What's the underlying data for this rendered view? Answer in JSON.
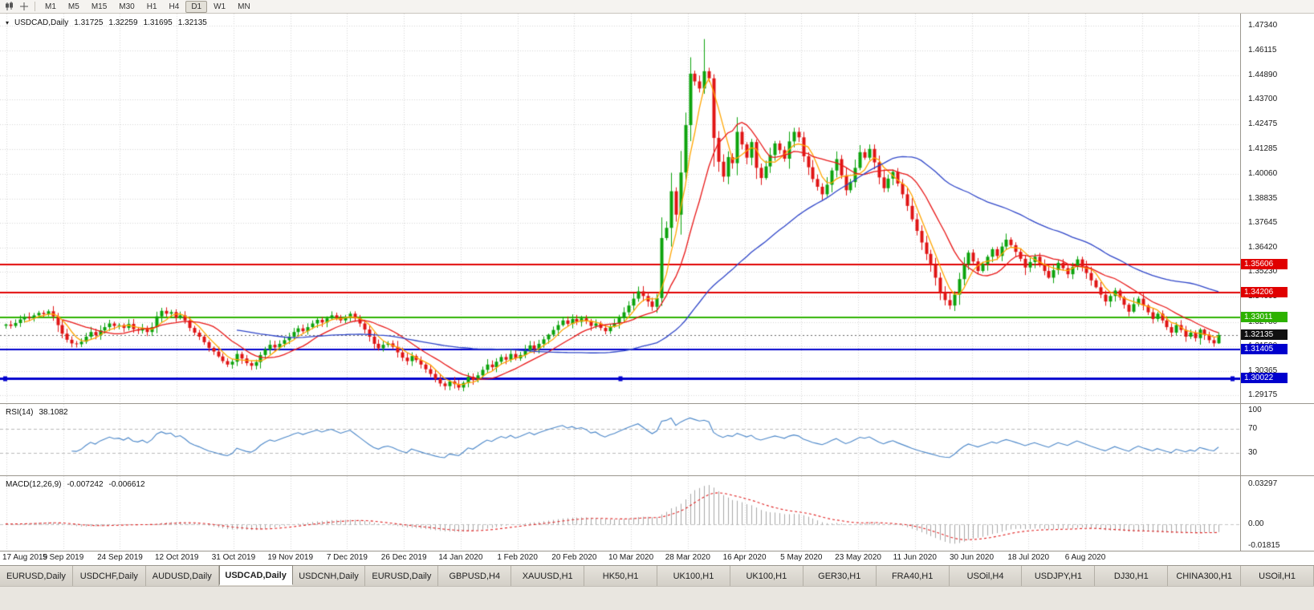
{
  "toolbar": {
    "timeframes": [
      "M1",
      "M5",
      "M15",
      "M30",
      "H1",
      "H4",
      "D1",
      "W1",
      "MN"
    ],
    "active": "D1"
  },
  "header": {
    "symbol": "USDCAD,Daily",
    "open": "1.31725",
    "high": "1.32259",
    "low": "1.31695",
    "close": "1.32135"
  },
  "chart_data": {
    "type": "candlestick",
    "symbol": "USDCAD",
    "timeframe": "Daily",
    "price_range": [
      1.29175,
      1.4734
    ],
    "y_ticks": [
      "1.47340",
      "1.46115",
      "1.44890",
      "1.43700",
      "1.42475",
      "1.41285",
      "1.40060",
      "1.38835",
      "1.37645",
      "1.36420",
      "1.35230",
      "1.34005",
      "1.32780",
      "1.31590",
      "1.30365",
      "1.29175"
    ],
    "x_labels": [
      "17 Aug 2019",
      "5 Sep 2019",
      "24 Sep 2019",
      "12 Oct 2019",
      "31 Oct 2019",
      "19 Nov 2019",
      "7 Dec 2019",
      "26 Dec 2019",
      "14 Jan 2020",
      "1 Feb 2020",
      "20 Feb 2020",
      "10 Mar 2020",
      "28 Mar 2020",
      "16 Apr 2020",
      "5 May 2020",
      "23 May 2020",
      "11 Jun 2020",
      "30 Jun 2020",
      "18 Jul 2020",
      "6 Aug 2020"
    ],
    "closes": [
      1.3265,
      1.3258,
      1.3272,
      1.329,
      1.3302,
      1.3295,
      1.331,
      1.3322,
      1.3316,
      1.333,
      1.3305,
      1.3262,
      1.322,
      1.319,
      1.3172,
      1.3168,
      1.318,
      1.3205,
      1.3228,
      1.3212,
      1.3236,
      1.3252,
      1.327,
      1.3258,
      1.3262,
      1.3248,
      1.3268,
      1.3242,
      1.3235,
      1.3248,
      1.3228,
      1.3252,
      1.3305,
      1.3332,
      1.3318,
      1.3326,
      1.3298,
      1.331,
      1.3285,
      1.3248,
      1.3225,
      1.3205,
      1.3178,
      1.315,
      1.3132,
      1.3108,
      1.3085,
      1.3068,
      1.3082,
      1.312,
      1.3098,
      1.3075,
      1.3062,
      1.308,
      1.3115,
      1.3142,
      1.3165,
      1.3152,
      1.317,
      1.3188,
      1.3205,
      1.3228,
      1.3246,
      1.3232,
      1.3252,
      1.327,
      1.3288,
      1.3275,
      1.3295,
      1.331,
      1.3298,
      1.3285,
      1.3302,
      1.3318,
      1.3295,
      1.327,
      1.324,
      1.3205,
      1.317,
      1.3148,
      1.3165,
      1.3172,
      1.3155,
      1.3128,
      1.3102,
      1.3085,
      1.311,
      1.309,
      1.3068,
      1.3045,
      1.3022,
      1.2998,
      1.2975,
      1.2962,
      1.2985,
      1.2972,
      1.2955,
      1.2978,
      1.3008,
      1.2992,
      1.3015,
      1.3042,
      1.3068,
      1.3055,
      1.3082,
      1.3105,
      1.3092,
      1.312,
      1.3098,
      1.3115,
      1.3138,
      1.3162,
      1.3145,
      1.317,
      1.3192,
      1.3215,
      1.3238,
      1.3262,
      1.3285,
      1.3268,
      1.3292,
      1.3278,
      1.3295,
      1.3282,
      1.3258,
      1.327,
      1.3248,
      1.3232,
      1.3255,
      1.3272,
      1.3298,
      1.3325,
      1.3358,
      1.3392,
      1.3428,
      1.3405,
      1.3378,
      1.3352,
      1.3395,
      1.369,
      1.374,
      1.392,
      1.3805,
      1.4012,
      1.4245,
      1.4498,
      1.446,
      1.4425,
      1.451,
      1.4475,
      1.4182,
      1.4065,
      1.3992,
      1.4088,
      1.4058,
      1.4212,
      1.415,
      1.4085,
      1.4162,
      1.4035,
      1.3985,
      1.4042,
      1.4098,
      1.4155,
      1.4122,
      1.408,
      1.4165,
      1.4212,
      1.4185,
      1.4092,
      1.4038,
      1.398,
      1.3942,
      1.3905,
      1.3952,
      1.4022,
      1.4078,
      1.3998,
      1.3925,
      1.3965,
      1.4035,
      1.4112,
      1.4085,
      1.4128,
      1.4062,
      1.3988,
      1.3935,
      1.3982,
      1.4015,
      1.3958,
      1.3905,
      1.3848,
      1.3782,
      1.3725,
      1.3668,
      1.3612,
      1.3558,
      1.3495,
      1.3422,
      1.3385,
      1.3358,
      1.3412,
      1.3488,
      1.3562,
      1.3618,
      1.3575,
      1.3528,
      1.3562,
      1.3598,
      1.3635,
      1.3602,
      1.3648,
      1.3682,
      1.3655,
      1.3622,
      1.3588,
      1.3545,
      1.3572,
      1.3598,
      1.3562,
      1.3528,
      1.3495,
      1.3532,
      1.3568,
      1.3542,
      1.3512,
      1.3548,
      1.3585,
      1.3552,
      1.3518,
      1.3482,
      1.3448,
      1.3412,
      1.3378,
      1.3405,
      1.3432,
      1.3398,
      1.3362,
      1.3328,
      1.3365,
      1.3392,
      1.3358,
      1.3325,
      1.3292,
      1.3318,
      1.3285,
      1.3252,
      1.3225,
      1.3262,
      1.3238,
      1.3205,
      1.3225,
      1.3198,
      1.324,
      1.3215,
      1.3188,
      1.31725,
      1.32135
    ],
    "overrides": {
      "148": {
        "h": 1.4668
      },
      "257": {
        "o": 1.31725,
        "h": 1.32259,
        "l": 1.31695,
        "c": 1.32135
      }
    },
    "last_candle": {
      "open": 1.31725,
      "high": 1.32259,
      "low": 1.31695,
      "close": 1.32135
    },
    "levels": [
      {
        "label": "1.35606",
        "value": 1.35606,
        "color": "#E00000",
        "width": 2
      },
      {
        "label": "1.34206",
        "value": 1.34206,
        "color": "#E00000",
        "width": 2
      },
      {
        "label": "1.33011",
        "value": 1.33011,
        "color": "#2DB200",
        "width": 2
      },
      {
        "label": "1.31405",
        "value": 1.31405,
        "color": "#0000CD",
        "width": 2
      },
      {
        "label": "1.30022",
        "value": 1.30022,
        "color": "#0000CD",
        "width": 3,
        "selected": true
      }
    ],
    "current_price": {
      "label": "1.32135",
      "value": 1.32135,
      "color": "#111111"
    },
    "moving_averages": [
      {
        "name": "fast",
        "period": 5,
        "color": "#FFA500"
      },
      {
        "name": "mid",
        "period": 13,
        "color": "#E81717"
      },
      {
        "name": "slow",
        "period": 50,
        "color": "#2E45C8"
      }
    ],
    "colors": {
      "up": "#0CA30C",
      "down": "#E01414",
      "grid": "#D6D6D6"
    },
    "indicators": {
      "rsi": {
        "label": "RSI(14)",
        "value": "38.1082",
        "period": 14,
        "line_color": "#4A86C8",
        "level_lines": [
          70,
          30
        ],
        "axis": [
          {
            "label": "100",
            "value": 100
          },
          {
            "label": "70",
            "value": 70
          },
          {
            "label": "30",
            "value": 30
          }
        ]
      },
      "macd": {
        "label": "MACD(12,26,9)",
        "main_value": "-0.007242",
        "signal_value": "-0.006612",
        "fast": 12,
        "slow": 26,
        "signal": 9,
        "hist_color": "#A6A6A6",
        "signal_color": "#E02020",
        "axis": [
          {
            "label": "0.03297",
            "value": 0.03297
          },
          {
            "label": "0.00",
            "value": 0
          },
          {
            "label": "-0.01815",
            "value": -0.01815
          }
        ]
      }
    }
  },
  "tabbar": {
    "tabs": [
      {
        "label": "EURUSD,Daily",
        "active": false
      },
      {
        "label": "USDCHF,Daily",
        "active": false
      },
      {
        "label": "AUDUSD,Daily",
        "active": false
      },
      {
        "label": "USDCAD,Daily",
        "active": true
      },
      {
        "label": "USDCNH,Daily",
        "active": false
      },
      {
        "label": "EURUSD,Daily",
        "active": false
      },
      {
        "label": "GBPUSD,H4",
        "active": false
      },
      {
        "label": "XAUUSD,H1",
        "active": false
      },
      {
        "label": "HK50,H1",
        "active": false
      },
      {
        "label": "UK100,H1",
        "active": false
      },
      {
        "label": "UK100,H1",
        "active": false
      },
      {
        "label": "GER30,H1",
        "active": false
      },
      {
        "label": "FRA40,H1",
        "active": false
      },
      {
        "label": "USOil,H4",
        "active": false
      },
      {
        "label": "USDJPY,H1",
        "active": false
      },
      {
        "label": "DJ30,H1",
        "active": false
      },
      {
        "label": "CHINA300,H1",
        "active": false
      },
      {
        "label": "USOil,H1",
        "active": false
      }
    ]
  }
}
